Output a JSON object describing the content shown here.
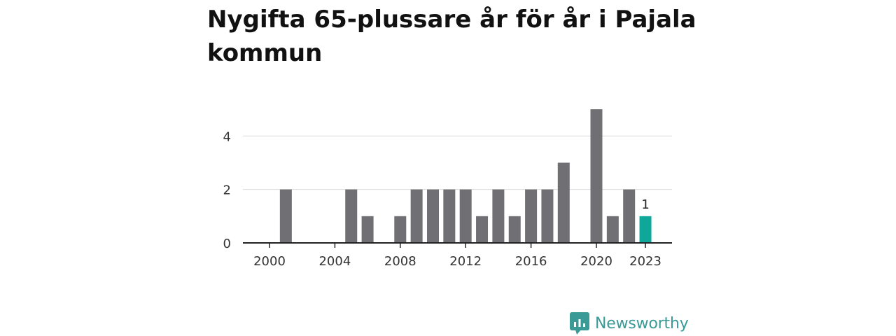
{
  "chart_data": {
    "type": "bar",
    "title": "Nygifta 65-plussare år för år i Pajala kommun",
    "x": [
      2000,
      2001,
      2002,
      2003,
      2004,
      2005,
      2006,
      2007,
      2008,
      2009,
      2010,
      2011,
      2012,
      2013,
      2014,
      2015,
      2016,
      2017,
      2018,
      2019,
      2020,
      2021,
      2022,
      2023
    ],
    "values": [
      0,
      2,
      0,
      0,
      0,
      2,
      1,
      0,
      1,
      2,
      2,
      2,
      2,
      1,
      2,
      1,
      2,
      2,
      3,
      0,
      5,
      1,
      2,
      1
    ],
    "x_tick_labels": [
      "2000",
      "2004",
      "2008",
      "2012",
      "2016",
      "2020",
      "2023"
    ],
    "y_tick_labels": [
      "0",
      "2",
      "4"
    ],
    "ylim": [
      0,
      5.5
    ],
    "grid": true,
    "highlight": {
      "year": 2023,
      "label": "1"
    },
    "colors": {
      "bar": "#706f74",
      "highlight": "#0ea79a",
      "grid": "#d9d9d9",
      "axis": "#222222",
      "text": "#333333"
    }
  },
  "brand": {
    "name": "Newsworthy",
    "logo_icon": "bar-chart-speech-bubble-icon",
    "color": "#3a9a95"
  }
}
